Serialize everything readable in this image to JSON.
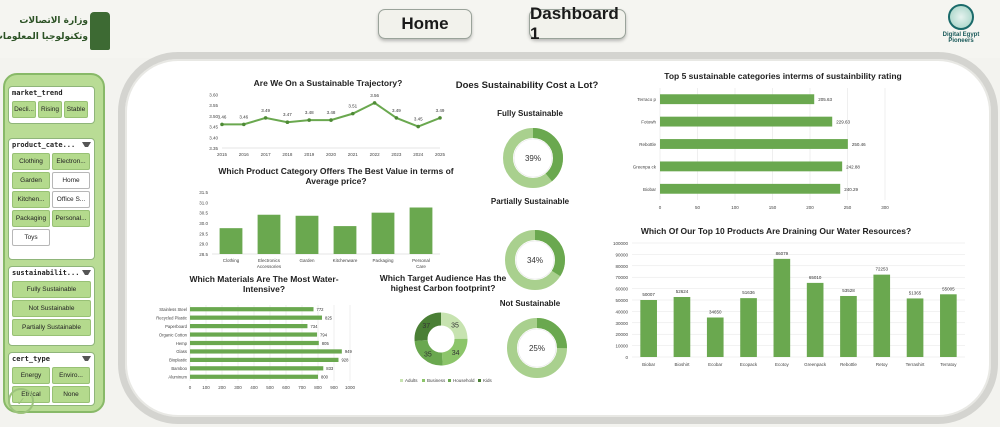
{
  "nav": {
    "home": "Home",
    "dashboard": "Dashboard 1"
  },
  "logo_left_text": [
    "وزارة الاتصالات",
    "وتكنولوجيا المعلومات"
  ],
  "logo_right_text": "Digital Egypt Pioneers",
  "slicers": [
    {
      "title": "market_trend",
      "items": [
        {
          "label": "Decli...",
          "selected": true
        },
        {
          "label": "Rising",
          "selected": true
        },
        {
          "label": "Stable",
          "selected": true
        }
      ]
    },
    {
      "title": "product_cate...",
      "items": [
        {
          "label": "Clothing",
          "selected": true
        },
        {
          "label": "Electron...",
          "selected": true
        },
        {
          "label": "Garden",
          "selected": true
        },
        {
          "label": "Home",
          "selected": false
        },
        {
          "label": "Kitchen...",
          "selected": true
        },
        {
          "label": "Office S...",
          "selected": false
        },
        {
          "label": "Packaging",
          "selected": true
        },
        {
          "label": "Personal...",
          "selected": true
        },
        {
          "label": "Toys",
          "selected": false
        }
      ]
    },
    {
      "title": "sustainabilit...",
      "items": [
        {
          "label": "Fully Sustainable",
          "selected": true
        },
        {
          "label": "Not Sustainable",
          "selected": true
        },
        {
          "label": "Partially Sustainable",
          "selected": true
        }
      ]
    },
    {
      "title": "cert_type",
      "items": [
        {
          "label": "Energy",
          "selected": true
        },
        {
          "label": "Enviro...",
          "selected": true
        },
        {
          "label": "Ethical",
          "selected": true
        },
        {
          "label": "None",
          "selected": true
        }
      ]
    }
  ],
  "titles": {
    "trajectory": "Are We On a Sustainable Trajectory?",
    "cost": "Does Sustainability Cost a Lot?",
    "top5": "Top 5 sustainable categories interms of  sustainbility rating",
    "value": "Which Product Category Offers The Best Value in terms of Average price?",
    "materials": "Which Materials Are The Most Water-Intensive?",
    "carbon": "Which Target Audience Has the highest Carbon footprint?",
    "water": "Which Of Our Top 10 Products Are Draining Our Water Resources?"
  },
  "colors": {
    "accent": "#6aa84f",
    "dark": "#4e8a35",
    "light": "#a9d08e",
    "grid": "#e4e4e4"
  },
  "chart_data": [
    {
      "id": "trajectory",
      "type": "line",
      "x": [
        "2015",
        "2016",
        "2017",
        "2018",
        "2019",
        "2020",
        "2021",
        "2022",
        "2023",
        "2024",
        "2025"
      ],
      "values": [
        3.46,
        3.46,
        3.49,
        3.47,
        3.48,
        3.48,
        3.51,
        3.56,
        3.49,
        3.45,
        3.49
      ],
      "ylim": [
        3.35,
        3.62
      ],
      "yticks": [
        3.35,
        3.4,
        3.45,
        3.5,
        3.55,
        3.6
      ]
    },
    {
      "id": "cost",
      "type": "pie",
      "donuts": [
        {
          "label": "Fully Sustainable",
          "value": 39
        },
        {
          "label": "Partially Sustainable",
          "value": 34
        },
        {
          "label": "Not Sustainable",
          "value": 25
        }
      ]
    },
    {
      "id": "top5",
      "type": "bar",
      "orientation": "horizontal",
      "categories": [
        "Terraco p",
        "Fotowh",
        "Rebottle",
        "Greenpa ck",
        "Biobar"
      ],
      "values": [
        205.63,
        229.63,
        250.46,
        242.88,
        240.29
      ],
      "xlim": [
        0,
        300
      ],
      "xticks": [
        0,
        50,
        100,
        150,
        200,
        250,
        300
      ]
    },
    {
      "id": "value",
      "type": "bar",
      "categories": [
        "Clothing",
        "Electronics Accessories",
        "Garden",
        "Kitchenware",
        "Packaging",
        "Personal Care"
      ],
      "values": [
        29.75,
        30.4,
        30.35,
        29.85,
        30.5,
        30.75
      ],
      "ylim": [
        28.5,
        31.5
      ],
      "yticks": [
        28.5,
        29,
        29.5,
        30,
        30.5,
        31,
        31.5
      ]
    },
    {
      "id": "materials",
      "type": "bar",
      "orientation": "horizontal",
      "categories": [
        "Stainless Steel",
        "Recycled Plastic",
        "Paperboard",
        "Organic Cotton",
        "Hemp",
        "Glass",
        "Bioplastic",
        "Bamboo",
        "Aluminum"
      ],
      "values": [
        772,
        825,
        734,
        794,
        805,
        949,
        928,
        833,
        800
      ],
      "xlim": [
        0,
        1000
      ],
      "xticks": [
        0,
        100,
        200,
        300,
        400,
        500,
        600,
        700,
        800,
        900,
        1000
      ]
    },
    {
      "id": "carbon",
      "type": "pie",
      "categories": [
        "Adults",
        "Business",
        "Household",
        "Kids"
      ],
      "values": [
        35,
        34,
        35,
        37
      ],
      "legend": "bottom"
    },
    {
      "id": "water",
      "type": "bar",
      "categories": [
        "Biobar",
        "Bioshirt",
        "Ecobar",
        "Ecopack",
        "Ecotoy",
        "Greenpack",
        "Rebottle",
        "Retoy",
        "Terrashirt",
        "Terratoy"
      ],
      "values": [
        50007,
        52624,
        34650,
        51636,
        86079,
        65010,
        53528,
        72253,
        51365,
        55005
      ],
      "ylim": [
        0,
        100000
      ],
      "yticks": [
        0,
        10000,
        20000,
        30000,
        40000,
        50000,
        60000,
        70000,
        80000,
        90000,
        100000
      ]
    }
  ]
}
